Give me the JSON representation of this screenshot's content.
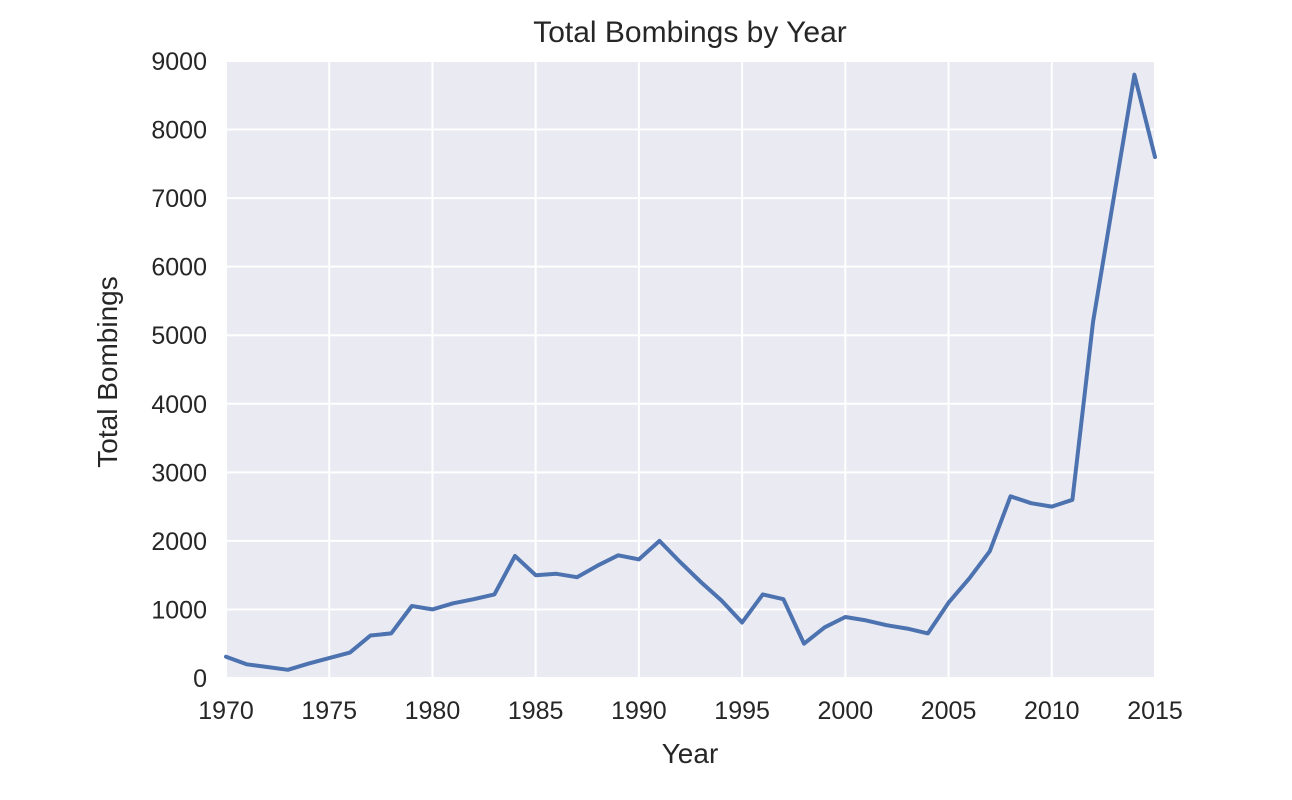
{
  "chart_data": {
    "type": "line",
    "title": "Total Bombings by Year",
    "xlabel": "Year",
    "ylabel": "Total Bombings",
    "x": [
      1970,
      1971,
      1972,
      1973,
      1974,
      1975,
      1976,
      1977,
      1978,
      1979,
      1980,
      1981,
      1982,
      1983,
      1984,
      1985,
      1986,
      1987,
      1988,
      1989,
      1990,
      1991,
      1992,
      1993,
      1994,
      1995,
      1996,
      1997,
      1998,
      1999,
      2000,
      2001,
      2002,
      2003,
      2004,
      2005,
      2006,
      2007,
      2008,
      2009,
      2010,
      2011,
      2012,
      2013,
      2014,
      2015
    ],
    "series": [
      {
        "name": "Total Bombings",
        "values": [
          310,
          200,
          160,
          120,
          210,
          290,
          370,
          620,
          650,
          1050,
          1000,
          1090,
          1150,
          1220,
          1780,
          1500,
          1520,
          1470,
          1640,
          1790,
          1730,
          2000,
          1690,
          1400,
          1130,
          810,
          1220,
          1150,
          500,
          740,
          890,
          840,
          770,
          720,
          650,
          1100,
          1450,
          1850,
          2650,
          2550,
          2500,
          2600,
          5200,
          7000,
          8800,
          7600
        ]
      }
    ],
    "xlim": [
      1970,
      2015
    ],
    "ylim": [
      0,
      9000
    ],
    "x_ticks": [
      1970,
      1975,
      1980,
      1985,
      1990,
      1995,
      2000,
      2005,
      2010,
      2015
    ],
    "y_ticks": [
      0,
      1000,
      2000,
      3000,
      4000,
      5000,
      6000,
      7000,
      8000,
      9000
    ],
    "grid": true,
    "legend": false,
    "style": {
      "line_color": "#4c72b0",
      "line_width": 4,
      "plot_bg": "#eaeaf2",
      "grid_color": "#ffffff",
      "text_color": "#262626",
      "figure_bg": "#ffffff"
    }
  }
}
